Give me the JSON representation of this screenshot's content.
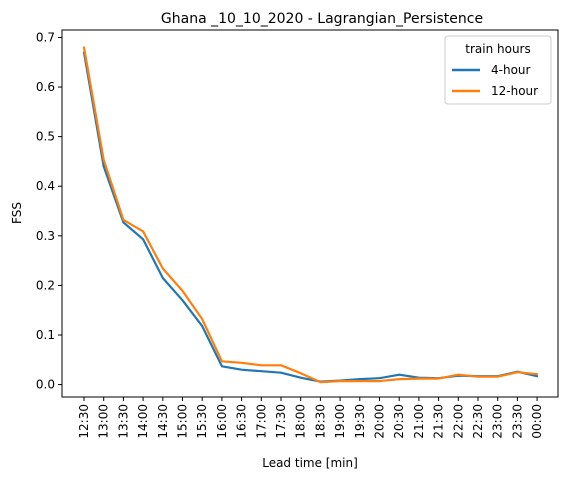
{
  "chart_data": {
    "type": "line",
    "title": "Ghana _10_10_2020 - Lagrangian_Persistence",
    "xlabel": "Lead time [min]",
    "ylabel": "FSS",
    "categories": [
      "12:30",
      "13:00",
      "13:30",
      "14:00",
      "14:30",
      "15:00",
      "15:30",
      "16:00",
      "16:30",
      "17:00",
      "17:30",
      "18:00",
      "18:30",
      "19:00",
      "19:30",
      "20:00",
      "20:30",
      "21:00",
      "21:30",
      "22:00",
      "22:30",
      "23:00",
      "23:30",
      "00:00"
    ],
    "yticks": [
      "0.0",
      "0.1",
      "0.2",
      "0.3",
      "0.4",
      "0.5",
      "0.6",
      "0.7"
    ],
    "ylim": [
      -0.025,
      0.715
    ],
    "legend": {
      "title": "train hours",
      "position": "top-right"
    },
    "series": [
      {
        "name": "4-hour",
        "color": "#1f77b4",
        "values": [
          0.67,
          0.44,
          0.327,
          0.293,
          0.215,
          0.17,
          0.118,
          0.037,
          0.03,
          0.027,
          0.024,
          0.014,
          0.006,
          0.008,
          0.011,
          0.013,
          0.02,
          0.014,
          0.013,
          0.018,
          0.017,
          0.017,
          0.026,
          0.017
        ]
      },
      {
        "name": "12-hour",
        "color": "#ff7f0e",
        "values": [
          0.68,
          0.453,
          0.332,
          0.309,
          0.234,
          0.189,
          0.132,
          0.047,
          0.044,
          0.039,
          0.039,
          0.023,
          0.005,
          0.007,
          0.007,
          0.007,
          0.011,
          0.012,
          0.012,
          0.02,
          0.016,
          0.016,
          0.025,
          0.021
        ]
      }
    ]
  }
}
